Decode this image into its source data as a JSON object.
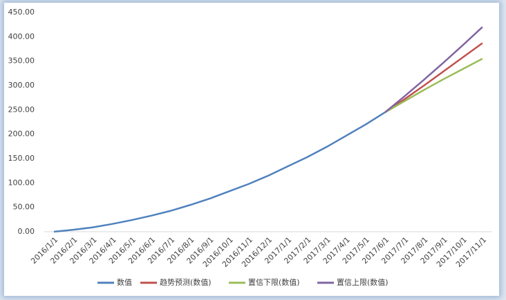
{
  "chart_data": {
    "type": "line",
    "categories": [
      "2016/1/1",
      "2016/2/1",
      "2016/3/1",
      "2016/4/1",
      "2016/5/1",
      "2016/6/1",
      "2016/7/1",
      "2016/8/1",
      "2016/9/1",
      "2016/10/1",
      "2016/11/1",
      "2016/12/1",
      "2017/1/1",
      "2017/2/1",
      "2017/3/1",
      "2017/4/1",
      "2017/5/1",
      "2017/6/1",
      "2017/7/1",
      "2017/8/1",
      "2017/9/1",
      "2017/10/1",
      "2017/11/1"
    ],
    "series": [
      {
        "name": "数值",
        "color": "#4f81bd",
        "values": [
          0,
          4,
          9,
          16,
          24,
          33,
          43,
          55,
          68,
          83,
          98,
          115,
          134,
          153,
          174,
          197,
          220,
          245,
          null,
          null,
          null,
          null,
          null
        ]
      },
      {
        "name": "趋势预测(数值)",
        "color": "#c0504d",
        "values": [
          null,
          null,
          null,
          null,
          null,
          null,
          null,
          null,
          null,
          null,
          null,
          null,
          null,
          null,
          null,
          null,
          null,
          245,
          272,
          300,
          329,
          358,
          387
        ]
      },
      {
        "name": "置信下限(数值)",
        "color": "#9bbb59",
        "values": [
          null,
          null,
          null,
          null,
          null,
          null,
          null,
          null,
          null,
          null,
          null,
          null,
          null,
          null,
          null,
          null,
          null,
          245,
          268,
          291,
          313,
          334,
          355
        ]
      },
      {
        "name": "置信上限(数值)",
        "color": "#8064a2",
        "values": [
          null,
          null,
          null,
          null,
          null,
          null,
          null,
          null,
          null,
          null,
          null,
          null,
          null,
          null,
          null,
          null,
          null,
          245,
          278,
          312,
          347,
          383,
          420
        ]
      }
    ],
    "ylim": [
      0,
      450
    ],
    "yticks": [
      {
        "value": 0,
        "label": "0.00"
      },
      {
        "value": 50,
        "label": "50.00"
      },
      {
        "value": 100,
        "label": "100.00"
      },
      {
        "value": 150,
        "label": "150.00"
      },
      {
        "value": 200,
        "label": "200.00"
      },
      {
        "value": 250,
        "label": "250.00"
      },
      {
        "value": 300,
        "label": "300.00"
      },
      {
        "value": 350,
        "label": "350.00"
      },
      {
        "value": 400,
        "label": "400.00"
      },
      {
        "value": 450,
        "label": "450.00"
      }
    ],
    "grid": false,
    "legend": "bottom"
  }
}
